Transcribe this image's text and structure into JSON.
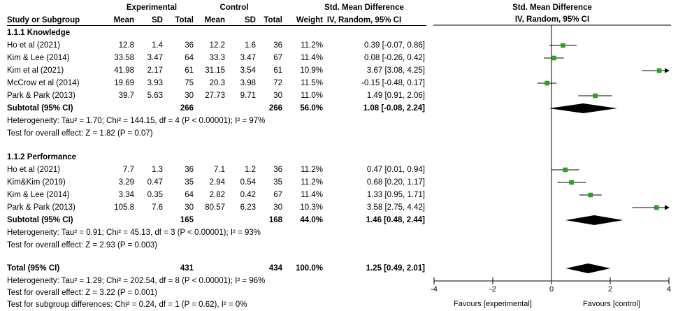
{
  "header": {
    "col_study": "Study or Subgroup",
    "group_experimental": "Experimental",
    "group_control": "Control",
    "col_mean": "Mean",
    "col_sd": "SD",
    "col_total": "Total",
    "col_weight": "Weight",
    "col_smd_title": "Std. Mean Difference",
    "col_smd_sub": "IV, Random, 95% CI",
    "plot_title": "Std. Mean Difference",
    "plot_sub": "IV, Random, 95% CI"
  },
  "subgroups": [
    {
      "title": "1.1.1 Knowledge",
      "studies": [
        {
          "study": "Ho et al (2021)",
          "e_mean": "12.8",
          "e_sd": "1.4",
          "e_total": "36",
          "c_mean": "12.2",
          "c_sd": "1.6",
          "c_total": "36",
          "weight": "11.2%",
          "ci_text": "0.39 [-0.07, 0.86]"
        },
        {
          "study": "Kim & Lee (2014)",
          "e_mean": "33.58",
          "e_sd": "3.47",
          "e_total": "64",
          "c_mean": "33.3",
          "c_sd": "3.47",
          "c_total": "67",
          "weight": "11.4%",
          "ci_text": "0.08 [-0.26, 0.42]"
        },
        {
          "study": "Kim et al (2021)",
          "e_mean": "41.98",
          "e_sd": "2.17",
          "e_total": "61",
          "c_mean": "31.15",
          "c_sd": "3.54",
          "c_total": "61",
          "weight": "10.9%",
          "ci_text": "3.67 [3.08, 4.25]"
        },
        {
          "study": "McCrow et al (2014)",
          "e_mean": "19.69",
          "e_sd": "3.93",
          "e_total": "75",
          "c_mean": "20.3",
          "c_sd": "3.98",
          "c_total": "72",
          "weight": "11.5%",
          "ci_text": "-0.15 [-0.48, 0.17]"
        },
        {
          "study": "Park & Park (2013)",
          "e_mean": "39.7",
          "e_sd": "5.63",
          "e_total": "30",
          "c_mean": "27.73",
          "c_sd": "9.71",
          "c_total": "30",
          "weight": "11.0%",
          "ci_text": "1.49 [0.91, 2.06]"
        }
      ],
      "subtotal": {
        "label": "Subtotal (95% CI)",
        "e_total": "266",
        "c_total": "266",
        "weight": "56.0%",
        "ci_text": "1.08 [-0.08, 2.24]"
      },
      "heterogeneity": "Heterogeneity: Tau² = 1.70; Chi² = 144.15, df = 4 (P < 0.00001); I² = 97%",
      "overall": "Test for overall effect: Z = 1.82 (P = 0.07)"
    },
    {
      "title": "1.1.2 Performance",
      "studies": [
        {
          "study": "Ho et al (2021)",
          "e_mean": "7.7",
          "e_sd": "1.3",
          "e_total": "36",
          "c_mean": "7.1",
          "c_sd": "1.2",
          "c_total": "36",
          "weight": "11.2%",
          "ci_text": "0.47 [0.01, 0.94]"
        },
        {
          "study": "Kim&Kim (2019)",
          "e_mean": "3.29",
          "e_sd": "0.47",
          "e_total": "35",
          "c_mean": "2.94",
          "c_sd": "0.54",
          "c_total": "35",
          "weight": "11.2%",
          "ci_text": "0.68 [0.20, 1.17]"
        },
        {
          "study": "Kim & Lee (2014)",
          "e_mean": "3.34",
          "e_sd": "0.35",
          "e_total": "64",
          "c_mean": "2.82",
          "c_sd": "0.42",
          "c_total": "67",
          "weight": "11.4%",
          "ci_text": "1.33 [0.95, 1.71]"
        },
        {
          "study": "Park & Park (2013)",
          "e_mean": "105.8",
          "e_sd": "7.6",
          "e_total": "30",
          "c_mean": "80.57",
          "c_sd": "6.23",
          "c_total": "30",
          "weight": "10.3%",
          "ci_text": "3.58 [2.75, 4.42]"
        }
      ],
      "subtotal": {
        "label": "Subtotal (95% CI)",
        "e_total": "165",
        "c_total": "168",
        "weight": "44.0%",
        "ci_text": "1.46 [0.48, 2.44]"
      },
      "heterogeneity": "Heterogeneity: Tau² = 0.91; Chi² = 45.13, df = 3 (P < 0.00001); I² = 93%",
      "overall": "Test for overall effect: Z = 2.93 (P = 0.003)"
    }
  ],
  "total": {
    "label": "Total (95% CI)",
    "e_total": "431",
    "c_total": "434",
    "weight": "100.0%",
    "ci_text": "1.25 [0.49, 2.01]",
    "heterogeneity": "Heterogeneity: Tau² = 1.29; Chi² = 202.54, df = 8 (P < 0.00001); I² = 96%",
    "overall": "Test for overall effect: Z = 3.22 (P = 0.001)",
    "subgroup_diff": "Test for subgroup differences: Chi² = 0.24, df = 1 (P = 0.62), I² = 0%"
  },
  "chart_data": {
    "type": "scatter",
    "title": "Std. Mean Difference",
    "subtitle": "IV, Random, 95% CI",
    "xlim": [
      -4,
      4
    ],
    "x_ticks": [
      "-4",
      "-2",
      "0",
      "2",
      "4"
    ],
    "x_tick_values": [
      -4,
      -2,
      0,
      2,
      4
    ],
    "favours_left": "Favours [experimental]",
    "favours_right": "Favours [control]",
    "colors": {
      "square": "#22aa22",
      "diamond": "#000000",
      "line": "#000000"
    },
    "studies": [
      {
        "study": "Ho et al (2021)",
        "subgroup": "1.1.1 Knowledge",
        "est": 0.39,
        "lo": -0.07,
        "hi": 0.86
      },
      {
        "study": "Kim & Lee (2014)",
        "subgroup": "1.1.1 Knowledge",
        "est": 0.08,
        "lo": -0.26,
        "hi": 0.42
      },
      {
        "study": "Kim et al (2021)",
        "subgroup": "1.1.1 Knowledge",
        "est": 3.67,
        "lo": 3.08,
        "hi": 4.25
      },
      {
        "study": "McCrow et al (2014)",
        "subgroup": "1.1.1 Knowledge",
        "est": -0.15,
        "lo": -0.48,
        "hi": 0.17
      },
      {
        "study": "Park & Park (2013)",
        "subgroup": "1.1.1 Knowledge",
        "est": 1.49,
        "lo": 0.91,
        "hi": 2.06
      },
      {
        "study": "Ho et al (2021)",
        "subgroup": "1.1.2 Performance",
        "est": 0.47,
        "lo": 0.01,
        "hi": 0.94
      },
      {
        "study": "Kim&Kim (2019)",
        "subgroup": "1.1.2 Performance",
        "est": 0.68,
        "lo": 0.2,
        "hi": 1.17
      },
      {
        "study": "Kim & Lee (2014)",
        "subgroup": "1.1.2 Performance",
        "est": 1.33,
        "lo": 0.95,
        "hi": 1.71
      },
      {
        "study": "Park & Park (2013)",
        "subgroup": "1.1.2 Performance",
        "est": 3.58,
        "lo": 2.75,
        "hi": 4.42
      }
    ],
    "diamonds": [
      {
        "label": "Subtotal (95% CI)",
        "subgroup": "1.1.1 Knowledge",
        "est": 1.08,
        "lo": -0.08,
        "hi": 2.24
      },
      {
        "label": "Subtotal (95% CI)",
        "subgroup": "1.1.2 Performance",
        "est": 1.46,
        "lo": 0.48,
        "hi": 2.44
      },
      {
        "label": "Total (95% CI)",
        "subgroup": "",
        "est": 1.25,
        "lo": 0.49,
        "hi": 2.01
      }
    ]
  }
}
